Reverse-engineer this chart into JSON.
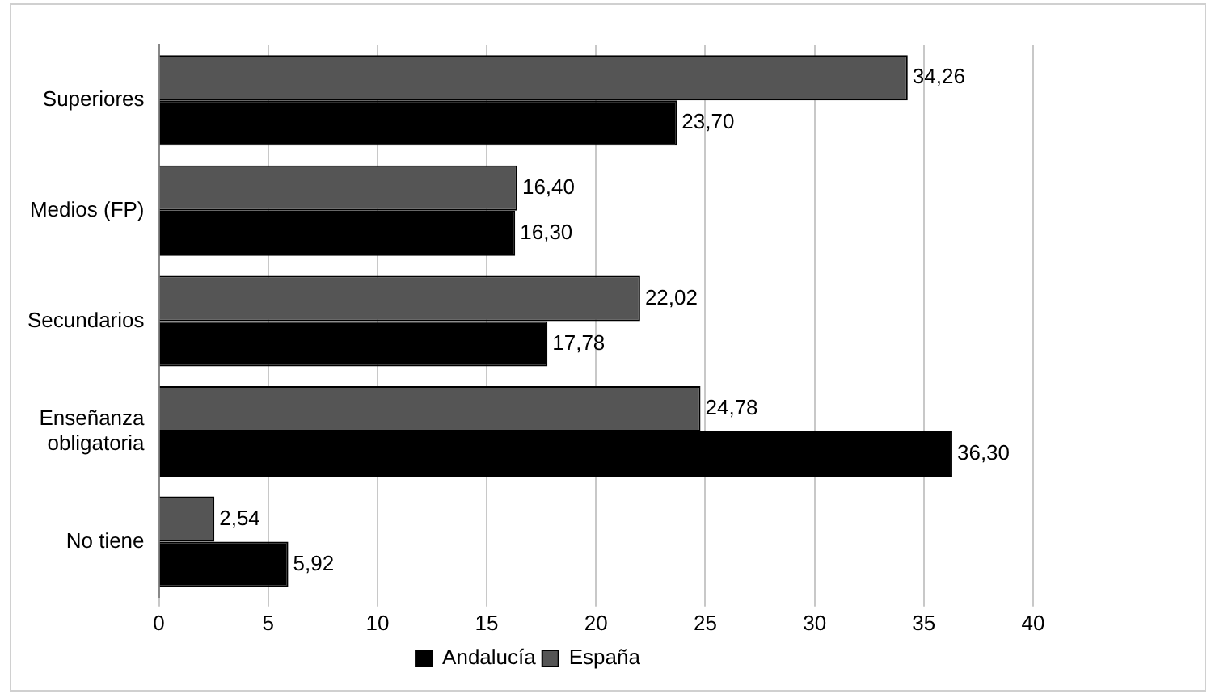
{
  "chart_data": {
    "type": "bar",
    "orientation": "horizontal",
    "categories": [
      "Superiores",
      "Medios (FP)",
      "Secundarios",
      "Enseñanza obligatoria",
      "No tiene"
    ],
    "series": [
      {
        "name": "España",
        "color": "#555555",
        "values": [
          34.26,
          16.4,
          22.02,
          24.78,
          2.54
        ],
        "value_labels": [
          "34,26",
          "16,40",
          "22,02",
          "24,78",
          "2,54"
        ]
      },
      {
        "name": "Andalucía",
        "color": "#000000",
        "values": [
          23.7,
          16.3,
          17.78,
          36.3,
          5.92
        ],
        "value_labels": [
          "23,70",
          "16,30",
          "17,78",
          "36,30",
          "5,92"
        ]
      }
    ],
    "xlim": [
      0,
      40
    ],
    "xticks": [
      0,
      5,
      10,
      15,
      20,
      25,
      30,
      35,
      40
    ],
    "grid": "x",
    "legend": "bottom"
  }
}
